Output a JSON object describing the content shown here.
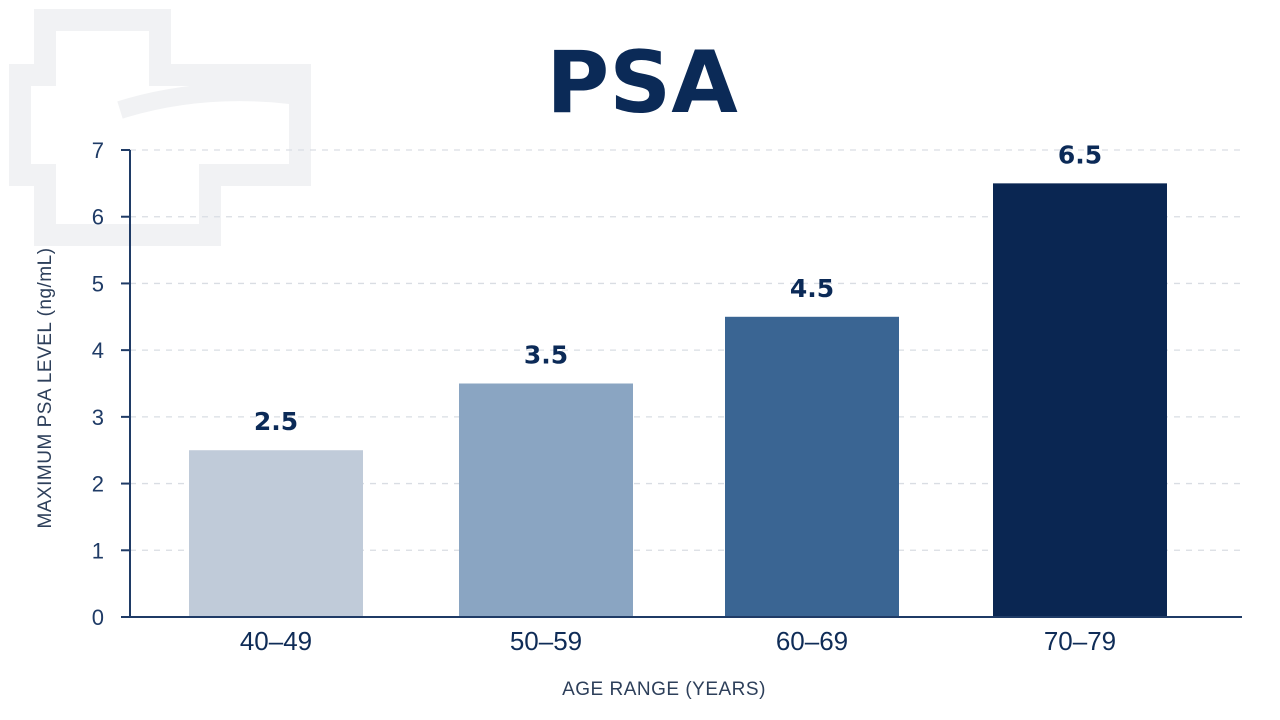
{
  "chart_data": {
    "type": "bar",
    "title": "PSA",
    "xlabel": "AGE RANGE (YEARS)",
    "ylabel": "MAXIMUM PSA LEVEL (ng/mL)",
    "categories": [
      "40–49",
      "50–59",
      "60–69",
      "70–79"
    ],
    "values": [
      2.5,
      3.5,
      4.5,
      6.5
    ],
    "value_labels": [
      "2.5",
      "3.5",
      "4.5",
      "6.5"
    ],
    "bar_colors": [
      "#c0cbd9",
      "#8aa5c2",
      "#3a6593",
      "#0a2652"
    ],
    "ylim": [
      0,
      7
    ],
    "yticks": [
      0,
      1,
      2,
      3,
      4,
      5,
      6,
      7
    ],
    "grid": true,
    "legend": "none"
  }
}
